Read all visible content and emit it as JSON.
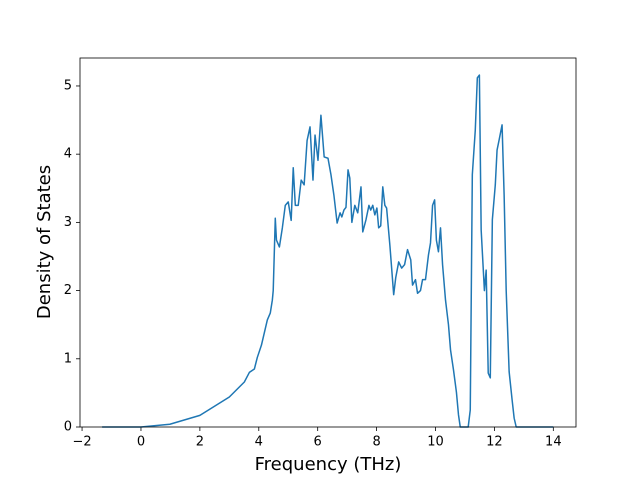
{
  "chart_data": {
    "type": "line",
    "x_label": "Frequency (THz)",
    "y_label": "Density of States",
    "x": [
      -1.32,
      0,
      0.98,
      2.0,
      3.0,
      3.51,
      3.68,
      3.85,
      3.95,
      4.09,
      4.29,
      4.39,
      4.46,
      4.49,
      4.56,
      4.6,
      4.7,
      4.8,
      4.9,
      5.0,
      5.1,
      5.17,
      5.24,
      5.34,
      5.44,
      5.54,
      5.64,
      5.74,
      5.84,
      5.91,
      6.01,
      6.11,
      6.22,
      6.35,
      6.45,
      6.55,
      6.66,
      6.76,
      6.82,
      6.89,
      6.96,
      7.03,
      7.09,
      7.16,
      7.26,
      7.36,
      7.47,
      7.53,
      7.64,
      7.74,
      7.8,
      7.87,
      7.94,
      8.01,
      8.07,
      8.14,
      8.21,
      8.28,
      8.34,
      8.45,
      8.58,
      8.65,
      8.75,
      8.85,
      8.95,
      9.05,
      9.16,
      9.22,
      9.32,
      9.39,
      9.49,
      9.56,
      9.66,
      9.76,
      9.83,
      9.9,
      9.97,
      10.03,
      10.1,
      10.17,
      10.24,
      10.34,
      10.44,
      10.51,
      10.61,
      10.71,
      10.78,
      10.84,
      11.11,
      11.18,
      11.25,
      11.35,
      11.42,
      11.49,
      11.55,
      11.66,
      11.72,
      11.79,
      11.86,
      11.93,
      12.03,
      12.09,
      12.16,
      12.26,
      12.33,
      12.4,
      12.5,
      12.6,
      12.67,
      12.74,
      14.0
    ],
    "series": [
      {
        "color": "#1f77b4",
        "values": [
          0,
          0,
          0.04,
          0.17,
          0.44,
          0.66,
          0.8,
          0.85,
          1.02,
          1.2,
          1.57,
          1.67,
          1.86,
          2.0,
          3.06,
          2.74,
          2.64,
          2.92,
          3.25,
          3.3,
          3.03,
          3.8,
          3.25,
          3.25,
          3.62,
          3.55,
          4.2,
          4.4,
          3.62,
          4.28,
          3.91,
          4.57,
          3.96,
          3.94,
          3.7,
          3.4,
          2.99,
          3.14,
          3.08,
          3.18,
          3.22,
          3.77,
          3.65,
          3.0,
          3.25,
          3.14,
          3.52,
          2.86,
          3.04,
          3.25,
          3.18,
          3.25,
          3.11,
          3.21,
          2.92,
          2.95,
          3.52,
          3.25,
          3.21,
          2.67,
          1.94,
          2.19,
          2.42,
          2.33,
          2.38,
          2.6,
          2.45,
          2.08,
          2.16,
          1.96,
          2.0,
          2.16,
          2.16,
          2.52,
          2.7,
          3.25,
          3.33,
          2.74,
          2.57,
          2.92,
          2.38,
          1.86,
          1.5,
          1.13,
          0.84,
          0.51,
          0.18,
          0,
          0,
          0.25,
          3.7,
          4.35,
          5.12,
          5.16,
          2.89,
          2.0,
          2.3,
          0.79,
          0.72,
          3.04,
          3.55,
          4.06,
          4.21,
          4.43,
          3.4,
          2.0,
          0.81,
          0.4,
          0.13,
          0,
          0
        ]
      }
    ],
    "xlim": [
      -2.07,
      14.77
    ],
    "ylim": [
      0,
      5.41
    ],
    "xticks": [
      {
        "value": -2,
        "label": "−2"
      },
      0,
      2,
      4,
      6,
      8,
      10,
      12,
      14
    ],
    "yticks": [
      0,
      1,
      2,
      3,
      4,
      5
    ]
  }
}
